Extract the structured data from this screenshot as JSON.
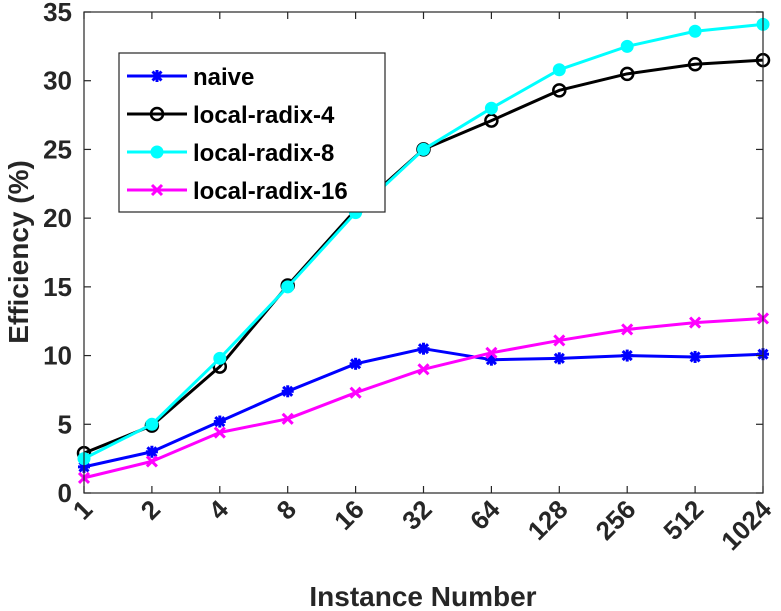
{
  "chart_data": {
    "type": "line",
    "title": "",
    "xlabel": "Instance Number",
    "ylabel": "Efficiency (%)",
    "categories": [
      "1",
      "2",
      "4",
      "8",
      "16",
      "32",
      "64",
      "128",
      "256",
      "512",
      "1024"
    ],
    "ylim": [
      0,
      35
    ],
    "yticks": [
      "0",
      "5",
      "10",
      "15",
      "20",
      "25",
      "30",
      "35"
    ],
    "grid": false,
    "legend_position": "top-left",
    "series": [
      {
        "name": "naive",
        "color": "#0000ff",
        "marker": "asterisk",
        "values": [
          1.9,
          3.0,
          5.2,
          7.4,
          9.4,
          10.5,
          9.7,
          9.8,
          10.0,
          9.9,
          10.1
        ]
      },
      {
        "name": "local-radix-4",
        "color": "#000000",
        "marker": "open-circle",
        "values": [
          2.9,
          4.9,
          9.2,
          15.1,
          20.6,
          25.0,
          27.1,
          29.3,
          30.5,
          31.2,
          31.5
        ]
      },
      {
        "name": "local-radix-8",
        "color": "#00ffff",
        "marker": "filled-circle",
        "values": [
          2.5,
          5.0,
          9.8,
          15.0,
          20.4,
          25.0,
          28.0,
          30.8,
          32.5,
          33.6,
          34.1
        ]
      },
      {
        "name": "local-radix-16",
        "color": "#ff00ff",
        "marker": "x",
        "values": [
          1.1,
          2.3,
          4.4,
          5.4,
          7.3,
          9.0,
          10.2,
          11.1,
          11.9,
          12.4,
          12.7
        ]
      }
    ]
  }
}
